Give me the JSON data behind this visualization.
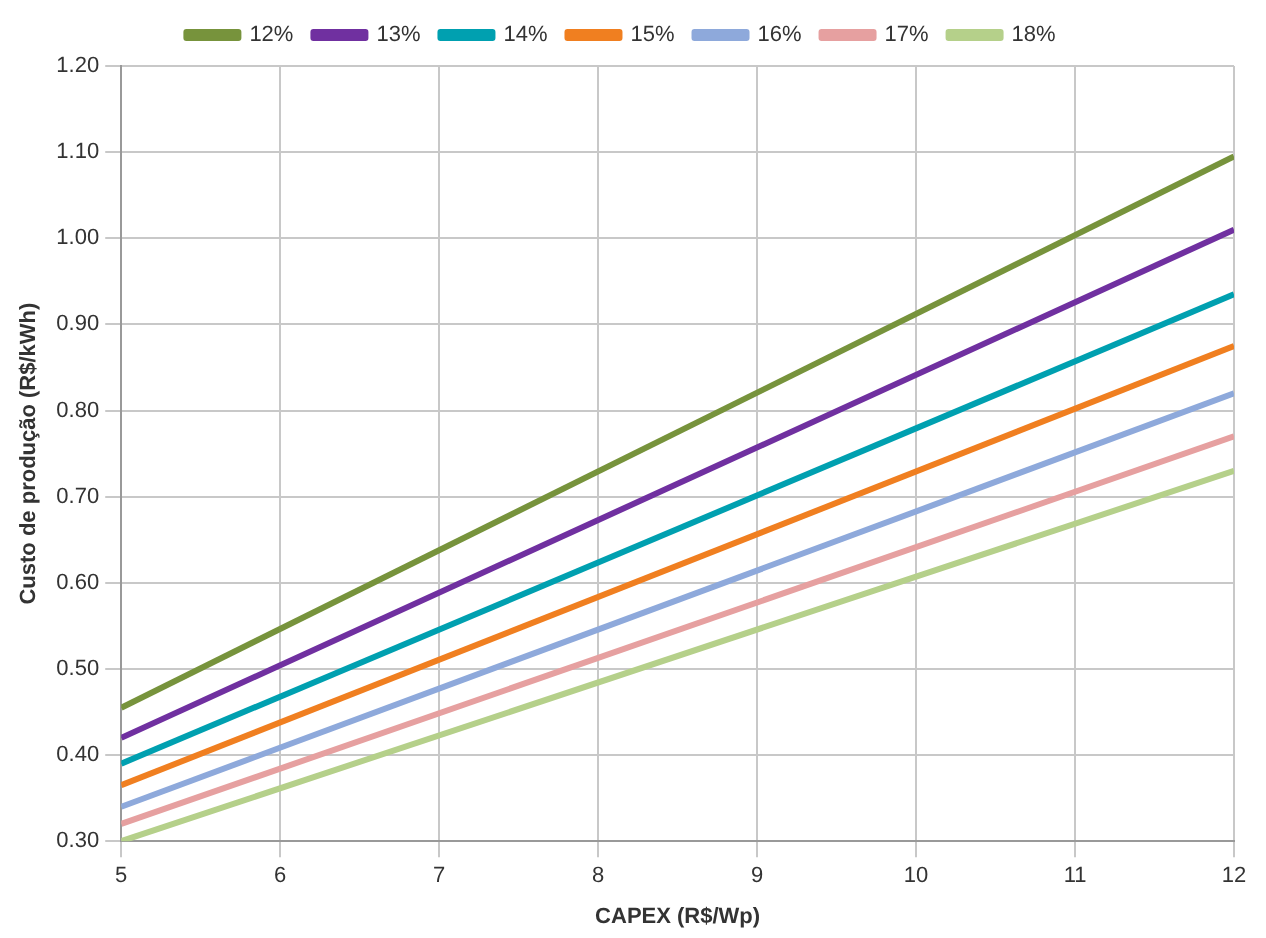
{
  "chart_data": {
    "type": "line",
    "xlabel": "CAPEX (R$/Wp)",
    "ylabel": "Custo de produção (R$/kWh)",
    "x": [
      5,
      12
    ],
    "series": [
      {
        "name": "12%",
        "color": "#77933c",
        "values": [
          0.455,
          1.095
        ]
      },
      {
        "name": "13%",
        "color": "#7030a0",
        "values": [
          0.42,
          1.01
        ]
      },
      {
        "name": "14%",
        "color": "#00a0b0",
        "values": [
          0.39,
          0.935
        ]
      },
      {
        "name": "15%",
        "color": "#f07f20",
        "values": [
          0.365,
          0.875
        ]
      },
      {
        "name": "16%",
        "color": "#8ea9db",
        "values": [
          0.34,
          0.82
        ]
      },
      {
        "name": "17%",
        "color": "#e6a0a0",
        "values": [
          0.32,
          0.77
        ]
      },
      {
        "name": "18%",
        "color": "#b5d08a",
        "values": [
          0.3,
          0.73
        ]
      }
    ],
    "xlim": [
      5,
      12
    ],
    "xticks": [
      5,
      6,
      7,
      8,
      9,
      10,
      11,
      12
    ],
    "ylim": [
      0.3,
      1.2
    ],
    "yticks": [
      {
        "value": 0.3,
        "label": "0.30"
      },
      {
        "value": 0.4,
        "label": "0.40"
      },
      {
        "value": 0.5,
        "label": "0.50"
      },
      {
        "value": 0.6,
        "label": "0.60"
      },
      {
        "value": 0.7,
        "label": "0.70"
      },
      {
        "value": 0.8,
        "label": "0.80"
      },
      {
        "value": 0.9,
        "label": "0.90"
      },
      {
        "value": 1.0,
        "label": "1.00"
      },
      {
        "value": 1.1,
        "label": "1.10"
      },
      {
        "value": 1.2,
        "label": "1.20"
      }
    ],
    "grid": true,
    "legend": "top",
    "marker": "none",
    "line_style": "solid"
  }
}
